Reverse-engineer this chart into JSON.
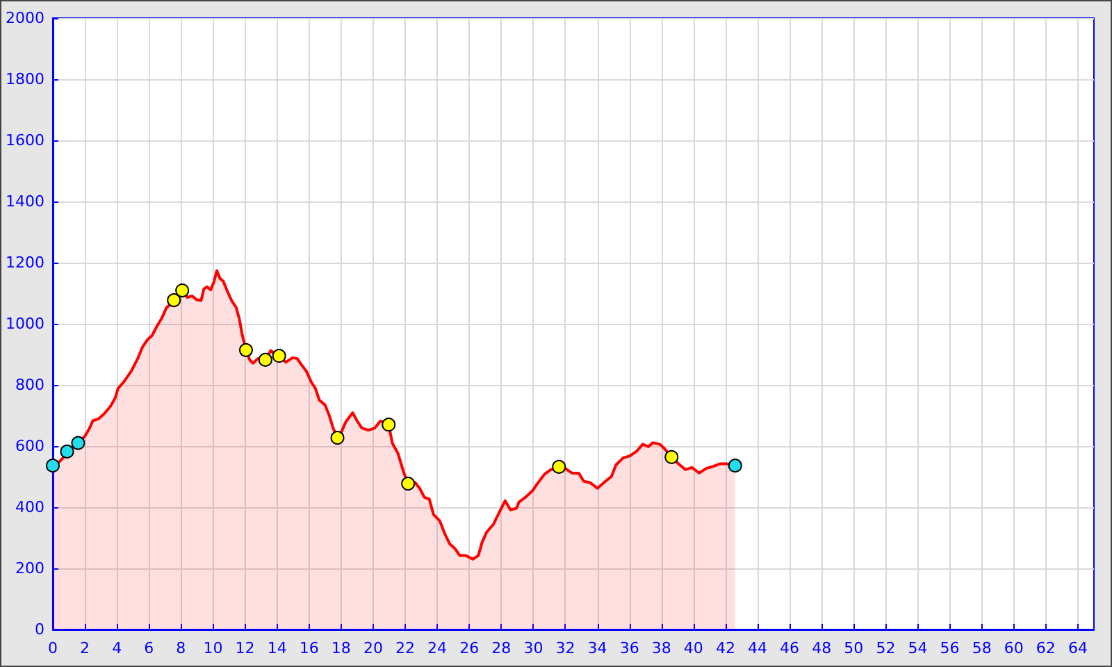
{
  "chart_data": {
    "type": "area",
    "xlim": [
      0,
      65
    ],
    "ylim": [
      0,
      2000
    ],
    "xticks": [
      0,
      2,
      4,
      6,
      8,
      10,
      12,
      14,
      16,
      18,
      20,
      22,
      24,
      26,
      28,
      30,
      32,
      34,
      36,
      38,
      40,
      42,
      44,
      46,
      48,
      50,
      52,
      54,
      56,
      58,
      60,
      62,
      64
    ],
    "yticks": [
      0,
      200,
      400,
      600,
      800,
      1000,
      1200,
      1400,
      1600,
      1800,
      2000
    ],
    "grid": true,
    "series": [
      {
        "color": "#ff0000",
        "marker": "none",
        "line_style": "solid",
        "x": [
          0,
          0.4,
          0.7,
          0.89,
          1.58,
          2.0,
          2.3,
          2.5,
          2.85,
          3.2,
          3.6,
          3.9,
          4.07,
          4.45,
          4.9,
          5.3,
          5.6,
          5.9,
          6.2,
          6.5,
          6.8,
          7.1,
          7.36,
          7.56,
          7.8,
          8.08,
          8.4,
          8.7,
          8.97,
          9.26,
          9.43,
          9.63,
          9.86,
          10.07,
          10.24,
          10.44,
          10.64,
          10.93,
          11.16,
          11.45,
          11.65,
          11.8,
          12.06,
          12.29,
          12.5,
          12.8,
          13.27,
          13.6,
          14.13,
          14.54,
          14.97,
          15.26,
          15.55,
          15.83,
          16.12,
          16.4,
          16.64,
          16.99,
          17.28,
          17.5,
          17.77,
          18.0,
          18.29,
          18.72,
          19.0,
          19.3,
          19.7,
          20.1,
          20.45,
          20.97,
          21.2,
          21.55,
          21.9,
          22.18,
          22.6,
          22.9,
          23.2,
          23.5,
          23.77,
          24.15,
          24.49,
          24.78,
          25.1,
          25.41,
          25.78,
          26.22,
          26.57,
          26.8,
          27.08,
          27.52,
          27.9,
          28.24,
          28.58,
          28.96,
          29.1,
          29.5,
          29.97,
          30.25,
          30.7,
          31.1,
          31.6,
          31.99,
          32.4,
          32.85,
          33.14,
          33.56,
          34.0,
          34.44,
          34.87,
          35.16,
          35.6,
          36.03,
          36.45,
          36.83,
          37.18,
          37.46,
          37.9,
          38.2,
          38.63,
          39.06,
          39.5,
          39.9,
          40.35,
          40.8,
          41.22,
          41.65,
          42.08,
          42.6
        ],
        "values": [
          536,
          548,
          565,
          582,
          610,
          632,
          659,
          683,
          689,
          705,
          730,
          758,
          788,
          811,
          845,
          886,
          924,
          947,
          962,
          992,
          1018,
          1053,
          1064,
          1077,
          1095,
          1109,
          1086,
          1091,
          1079,
          1076,
          1114,
          1121,
          1111,
          1139,
          1174,
          1148,
          1139,
          1103,
          1076,
          1053,
          1015,
          970,
          914,
          882,
          871,
          886,
          882,
          912,
          895,
          874,
          889,
          886,
          864,
          845,
          811,
          788,
          750,
          735,
          697,
          659,
          627,
          644,
          679,
          709,
          682,
          659,
          652,
          659,
          682,
          670,
          609,
          576,
          515,
          477,
          482,
          462,
          432,
          427,
          376,
          356,
          311,
          280,
          265,
          242,
          242,
          230,
          242,
          285,
          318,
          345,
          386,
          421,
          391,
          397,
          417,
          432,
          455,
          477,
          508,
          523,
          532,
          527,
          512,
          511,
          485,
          480,
          462,
          482,
          500,
          538,
          561,
          568,
          583,
          606,
          598,
          611,
          606,
          591,
          564,
          542,
          523,
          530,
          512,
          527,
          533,
          542,
          542,
          536
        ]
      },
      {
        "type": "scatter",
        "color": "#22ddee",
        "marker": "circle",
        "x": [
          0,
          0.89,
          1.58,
          42.6
        ],
        "values": [
          536,
          582,
          610,
          536
        ]
      },
      {
        "type": "scatter",
        "color": "#ffff00",
        "marker": "circle",
        "x": [
          7.56,
          8.08,
          12.06,
          13.27,
          14.13,
          17.77,
          20.97,
          22.18,
          31.6,
          38.63
        ],
        "values": [
          1077,
          1109,
          914,
          882,
          895,
          627,
          670,
          477,
          532,
          564
        ]
      }
    ]
  }
}
